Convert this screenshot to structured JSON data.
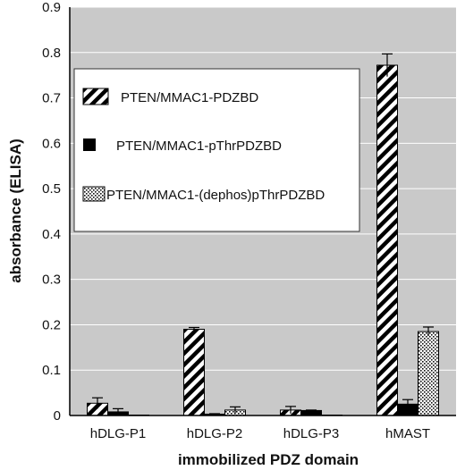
{
  "chart_data": {
    "type": "bar",
    "xlabel": "immobilized PDZ domain",
    "ylabel": "absorbance (ELISA)",
    "ylim": [
      0,
      0.9
    ],
    "yticks": [
      "0",
      "0.1",
      "0.2",
      "0.3",
      "0.4",
      "0.5",
      "0.6",
      "0.7",
      "0.8",
      "0.9"
    ],
    "categories": [
      "hDLG-P1",
      "hDLG-P2",
      "hDLG-P3",
      "hMAST"
    ],
    "grid": true,
    "legend_position": "top-left inside plot",
    "series": [
      {
        "name": "PTEN/MMAC1-PDZBD",
        "pattern": "diagonal-hatch",
        "values": [
          0.027,
          0.19,
          0.012,
          0.772
        ],
        "errors": [
          0.012,
          0.004,
          0.008,
          0.025
        ]
      },
      {
        "name": "PTEN/MMAC1-pThrPDZBD",
        "pattern": "solid-black",
        "values": [
          0.008,
          0.003,
          0.011,
          0.025
        ],
        "errors": [
          0.007,
          0.001,
          0.001,
          0.01
        ]
      },
      {
        "name": "PTEN/MMAC1-(dephos)pThrPDZBD",
        "pattern": "dotted",
        "values": [
          0.001,
          0.012,
          0.001,
          0.185
        ],
        "errors": [
          0.0,
          0.007,
          0.0,
          0.01
        ]
      }
    ],
    "colors": {
      "plot_background": "#c9c9c9",
      "bar_stroke": "#000000",
      "grid": "#ffffff"
    }
  }
}
